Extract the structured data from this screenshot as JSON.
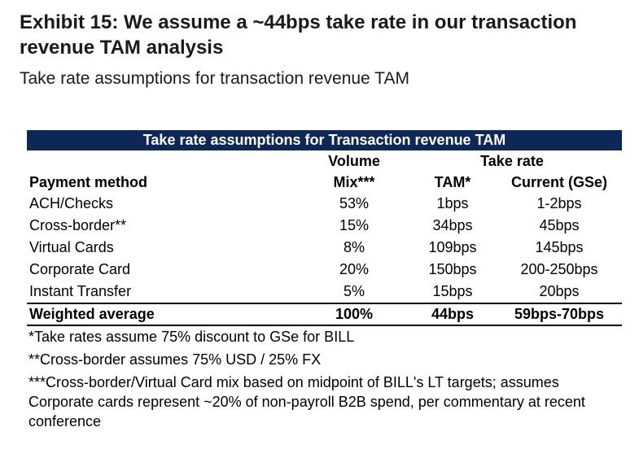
{
  "title": "Exhibit 15: We assume a ~44bps take rate in our transaction revenue TAM analysis",
  "subtitle": "Take rate assumptions for transaction revenue TAM",
  "table": {
    "banner": "Take rate assumptions for Transaction revenue TAM",
    "header_top": {
      "volume": "Volume",
      "take_rate": "Take rate"
    },
    "header": {
      "method": "Payment method",
      "mix": "Mix***",
      "tam": "TAM*",
      "current": "Current (GSe)"
    },
    "rows": [
      {
        "method": "ACH/Checks",
        "mix": "53%",
        "tam": "1bps",
        "current": "1-2bps"
      },
      {
        "method": "Cross-border**",
        "mix": "15%",
        "tam": "34bps",
        "current": "45bps"
      },
      {
        "method": "Virtual Cards",
        "mix": "8%",
        "tam": "109bps",
        "current": "145bps"
      },
      {
        "method": "Corporate Card",
        "mix": "20%",
        "tam": "150bps",
        "current": "200-250bps"
      },
      {
        "method": "Instant Transfer",
        "mix": "5%",
        "tam": "15bps",
        "current": "20bps"
      }
    ],
    "total": {
      "method": "Weighted average",
      "mix": "100%",
      "tam": "44bps",
      "current": "59bps-70bps"
    }
  },
  "notes": [
    "*Take rates assume 75% discount to GSe for BILL",
    "**Cross-border assumes 75% USD / 25% FX",
    "***Cross-border/Virtual Card mix based on midpoint of BILL's LT targets; assumes Corporate cards represent ~20% of non-payroll B2B spend, per commentary at recent conference"
  ],
  "colors": {
    "banner_bg": "#0d2757",
    "banner_text": "#ffffff"
  }
}
